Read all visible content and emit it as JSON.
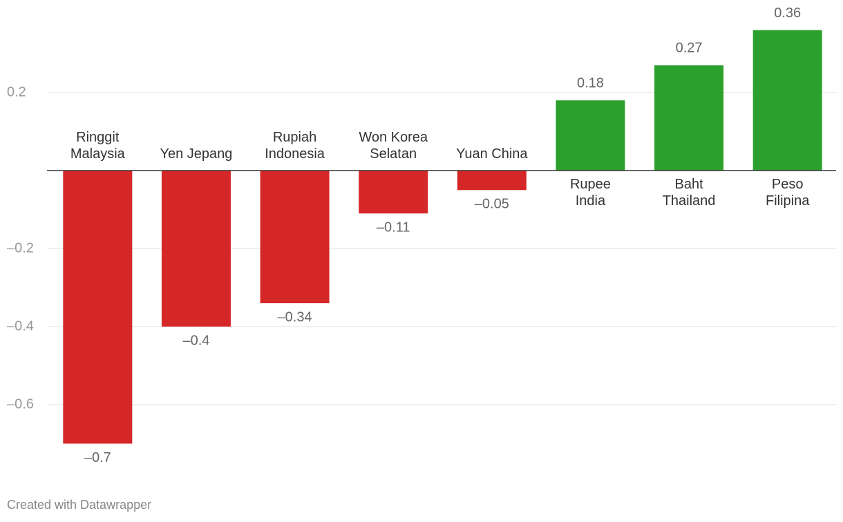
{
  "chart_data": {
    "type": "bar",
    "categories": [
      "Ringgit\nMalaysia",
      "Yen Jepang",
      "Rupiah\nIndonesia",
      "Won Korea\nSelatan",
      "Yuan China",
      "Rupee\nIndia",
      "Baht\nThailand",
      "Peso\nFilipina"
    ],
    "values": [
      -0.7,
      -0.4,
      -0.34,
      -0.11,
      -0.05,
      0.18,
      0.27,
      0.36
    ],
    "value_labels": [
      "–0.7",
      "–0.4",
      "–0.34",
      "–0.11",
      "–0.05",
      "0.18",
      "0.27",
      "0.36"
    ],
    "colors": [
      "#d62728",
      "#d62728",
      "#d62728",
      "#d62728",
      "#d62728",
      "#2ca02c",
      "#2ca02c",
      "#2ca02c"
    ],
    "ylim": [
      -0.8,
      0.4
    ],
    "yticks": [
      {
        "value": -0.6,
        "label": "–0.6"
      },
      {
        "value": -0.4,
        "label": "–0.4"
      },
      {
        "value": -0.2,
        "label": "–0.2"
      },
      0.2
    ],
    "grid": true,
    "footer": "Created with Datawrapper"
  }
}
